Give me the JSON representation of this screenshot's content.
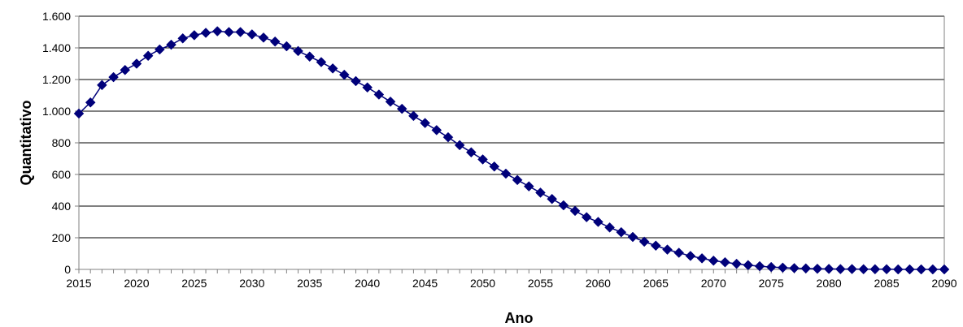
{
  "chart_data": {
    "type": "line",
    "title": "",
    "xlabel": "Ano",
    "ylabel": "Quantitativo",
    "xlim": [
      2015,
      2090
    ],
    "ylim": [
      0,
      1600
    ],
    "x_ticks": [
      2015,
      2020,
      2025,
      2030,
      2035,
      2040,
      2045,
      2050,
      2055,
      2060,
      2065,
      2070,
      2075,
      2080,
      2085,
      2090
    ],
    "y_ticks": [
      0,
      200,
      400,
      600,
      800,
      1000,
      1200,
      1400,
      1600
    ],
    "y_tick_labels": [
      "0",
      "200",
      "400",
      "600",
      "800",
      "1.000",
      "1.200",
      "1.400",
      "1.600"
    ],
    "grid": "horizontal",
    "legend": "none",
    "marker": "diamond",
    "colors": {
      "series": "#00007a",
      "grid": "#000000",
      "axis": "#808080"
    },
    "series": [
      {
        "x": [
          2015,
          2016,
          2017,
          2018,
          2019,
          2020,
          2021,
          2022,
          2023,
          2024,
          2025,
          2026,
          2027,
          2028,
          2029,
          2030,
          2031,
          2032,
          2033,
          2034,
          2035,
          2036,
          2037,
          2038,
          2039,
          2040,
          2041,
          2042,
          2043,
          2044,
          2045,
          2046,
          2047,
          2048,
          2049,
          2050,
          2051,
          2052,
          2053,
          2054,
          2055,
          2056,
          2057,
          2058,
          2059,
          2060,
          2061,
          2062,
          2063,
          2064,
          2065,
          2066,
          2067,
          2068,
          2069,
          2070,
          2071,
          2072,
          2073,
          2074,
          2075,
          2076,
          2077,
          2078,
          2079,
          2080,
          2081,
          2082,
          2083,
          2084,
          2085,
          2086,
          2087,
          2088,
          2089,
          2090
        ],
        "values": [
          985,
          1055,
          1165,
          1215,
          1260,
          1300,
          1350,
          1390,
          1420,
          1460,
          1480,
          1495,
          1505,
          1500,
          1500,
          1485,
          1465,
          1440,
          1410,
          1380,
          1345,
          1310,
          1270,
          1230,
          1190,
          1150,
          1105,
          1060,
          1015,
          970,
          925,
          880,
          835,
          785,
          740,
          695,
          650,
          605,
          565,
          525,
          485,
          445,
          405,
          370,
          330,
          300,
          265,
          235,
          205,
          175,
          150,
          125,
          105,
          85,
          70,
          55,
          45,
          35,
          27,
          20,
          15,
          11,
          8,
          6,
          4,
          3,
          2,
          2,
          1,
          1,
          1,
          0,
          0,
          0,
          0,
          0
        ]
      }
    ]
  }
}
